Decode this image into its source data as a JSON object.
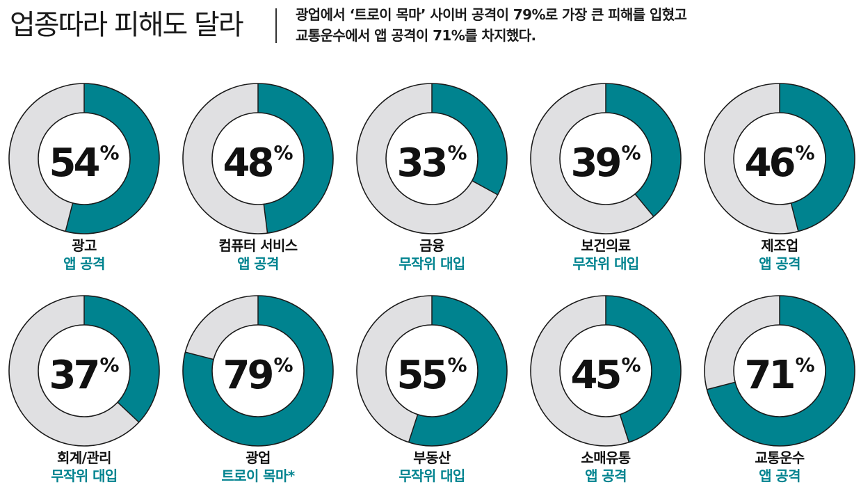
{
  "header": {
    "title": "업종따라 피해도 달라",
    "subtitle_line1": "광업에서 ‘트로이 목마’ 사이버 공격이 79%로 가장 큰 피해를 입혔고",
    "subtitle_line2": "교통운수에서 앱 공격이 71%를 차지했다."
  },
  "colors": {
    "accent": "#00838f",
    "track": "#e0e0e2",
    "outline": "#1a1a1a",
    "type_text": "#00838f"
  },
  "chart_data": {
    "type": "pie",
    "variant": "donut",
    "unit": "%",
    "items": [
      {
        "category": "광고",
        "value": 54,
        "attack_type": "앱 공격"
      },
      {
        "category": "컴퓨터 서비스",
        "value": 48,
        "attack_type": "앱 공격"
      },
      {
        "category": "금융",
        "value": 33,
        "attack_type": "무작위 대입"
      },
      {
        "category": "보건의료",
        "value": 39,
        "attack_type": "무작위 대입"
      },
      {
        "category": "제조업",
        "value": 46,
        "attack_type": "앱 공격"
      },
      {
        "category": "회계/관리",
        "value": 37,
        "attack_type": "무작위 대입"
      },
      {
        "category": "광업",
        "value": 79,
        "attack_type": "트로이 목마*"
      },
      {
        "category": "부동산",
        "value": 55,
        "attack_type": "무작위 대입"
      },
      {
        "category": "소매유통",
        "value": 45,
        "attack_type": "앱 공격"
      },
      {
        "category": "교통운수",
        "value": 71,
        "attack_type": "앱 공격"
      }
    ]
  }
}
